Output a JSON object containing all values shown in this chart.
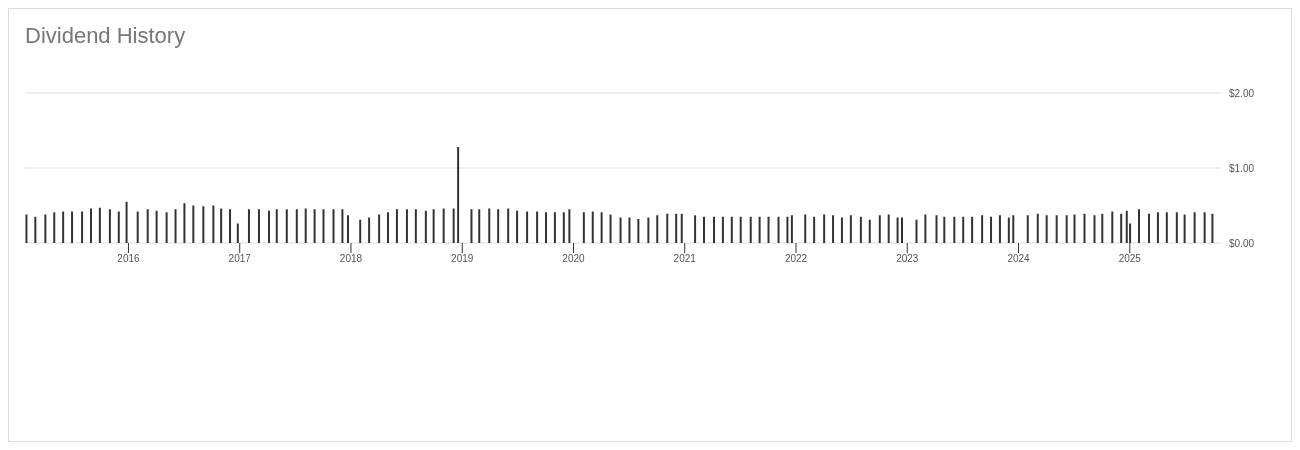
{
  "chart_data": {
    "type": "bar",
    "title": "Dividend History",
    "x": [
      2015.08,
      2015.16,
      2015.25,
      2015.33,
      2015.41,
      2015.49,
      2015.58,
      2015.66,
      2015.74,
      2015.83,
      2015.91,
      2015.98,
      2016.08,
      2016.17,
      2016.25,
      2016.34,
      2016.42,
      2016.5,
      2016.58,
      2016.67,
      2016.76,
      2016.83,
      2016.91,
      2016.98,
      2017.08,
      2017.17,
      2017.26,
      2017.33,
      2017.42,
      2017.51,
      2017.59,
      2017.67,
      2017.75,
      2017.84,
      2017.92,
      2017.97,
      2018.08,
      2018.16,
      2018.25,
      2018.33,
      2018.41,
      2018.5,
      2018.58,
      2018.67,
      2018.74,
      2018.83,
      2018.92,
      2018.96,
      2019.08,
      2019.15,
      2019.24,
      2019.32,
      2019.41,
      2019.49,
      2019.58,
      2019.67,
      2019.75,
      2019.83,
      2019.91,
      2019.96,
      2020.09,
      2020.17,
      2020.25,
      2020.33,
      2020.42,
      2020.5,
      2020.58,
      2020.67,
      2020.75,
      2020.84,
      2020.92,
      2020.97,
      2021.09,
      2021.17,
      2021.26,
      2021.34,
      2021.42,
      2021.5,
      2021.59,
      2021.67,
      2021.75,
      2021.84,
      2021.92,
      2021.96,
      2022.08,
      2022.16,
      2022.25,
      2022.33,
      2022.41,
      2022.49,
      2022.58,
      2022.66,
      2022.75,
      2022.83,
      2022.91,
      2022.95,
      2023.08,
      2023.16,
      2023.26,
      2023.33,
      2023.42,
      2023.5,
      2023.58,
      2023.67,
      2023.75,
      2023.83,
      2023.91,
      2023.95,
      2024.08,
      2024.17,
      2024.25,
      2024.34,
      2024.43,
      2024.5,
      2024.59,
      2024.68,
      2024.75,
      2024.84,
      2024.92,
      2024.97,
      2025.0,
      2025.08,
      2025.17,
      2025.25,
      2025.33,
      2025.42,
      2025.49,
      2025.58,
      2025.67,
      2025.74
    ],
    "values": [
      0.38,
      0.35,
      0.38,
      0.41,
      0.42,
      0.42,
      0.42,
      0.46,
      0.47,
      0.45,
      0.42,
      0.55,
      0.42,
      0.45,
      0.43,
      0.41,
      0.45,
      0.53,
      0.5,
      0.49,
      0.5,
      0.46,
      0.45,
      0.26,
      0.45,
      0.45,
      0.43,
      0.45,
      0.45,
      0.45,
      0.46,
      0.45,
      0.45,
      0.45,
      0.45,
      0.37,
      0.31,
      0.34,
      0.38,
      0.41,
      0.45,
      0.45,
      0.45,
      0.43,
      0.45,
      0.46,
      0.46,
      1.28,
      0.45,
      0.45,
      0.46,
      0.45,
      0.46,
      0.43,
      0.42,
      0.42,
      0.41,
      0.41,
      0.41,
      0.45,
      0.41,
      0.42,
      0.41,
      0.38,
      0.34,
      0.34,
      0.32,
      0.34,
      0.37,
      0.39,
      0.39,
      0.39,
      0.37,
      0.35,
      0.35,
      0.35,
      0.35,
      0.35,
      0.35,
      0.35,
      0.35,
      0.35,
      0.35,
      0.37,
      0.38,
      0.35,
      0.38,
      0.37,
      0.34,
      0.37,
      0.35,
      0.31,
      0.37,
      0.38,
      0.34,
      0.34,
      0.31,
      0.38,
      0.37,
      0.35,
      0.35,
      0.35,
      0.35,
      0.37,
      0.35,
      0.37,
      0.34,
      0.37,
      0.37,
      0.39,
      0.37,
      0.37,
      0.37,
      0.38,
      0.39,
      0.37,
      0.39,
      0.42,
      0.39,
      0.43,
      0.26,
      0.45,
      0.39,
      0.41,
      0.41,
      0.41,
      0.38,
      0.41,
      0.41,
      0.39
    ],
    "color": "#333333",
    "xlim": [
      2015.07,
      2025.82
    ],
    "xticks": [
      2016,
      2017,
      2018,
      2019,
      2020,
      2021,
      2022,
      2023,
      2024,
      2025
    ],
    "ylim": [
      0,
      2
    ],
    "yticks": [
      {
        "value": 0,
        "label": "$0.00"
      },
      {
        "value": 1,
        "label": "$1.00"
      },
      {
        "value": 2,
        "label": "$2.00"
      }
    ],
    "grid": "y"
  }
}
